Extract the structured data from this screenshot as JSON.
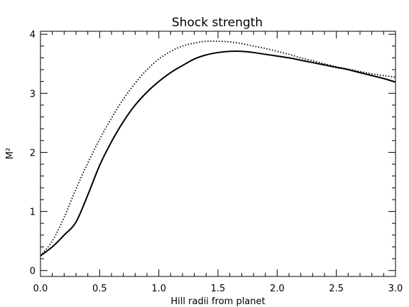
{
  "chart_data": {
    "type": "line",
    "title": "Shock strength",
    "xlabel": "Hill radii from planet",
    "ylabel": "M²",
    "xlim": [
      0.0,
      3.0
    ],
    "ylim": [
      -0.1,
      4.05
    ],
    "xticks": [
      0.0,
      0.5,
      1.0,
      1.5,
      2.0,
      2.5,
      3.0
    ],
    "xtick_labels": [
      "0.0",
      "0.5",
      "1.0",
      "1.5",
      "2.0",
      "2.5",
      "3.0"
    ],
    "yticks": [
      0,
      1,
      2,
      3,
      4
    ],
    "ytick_labels": [
      "0",
      "1",
      "2",
      "3",
      "4"
    ],
    "grid": false,
    "series": [
      {
        "style": "solid",
        "x": [
          0.0,
          0.1,
          0.2,
          0.3,
          0.4,
          0.5,
          0.6,
          0.7,
          0.8,
          0.9,
          1.0,
          1.1,
          1.2,
          1.3,
          1.4,
          1.5,
          1.6,
          1.7,
          1.8,
          1.9,
          2.0,
          2.1,
          2.2,
          2.3,
          2.4,
          2.5,
          2.6,
          2.7,
          2.8,
          2.9,
          3.0
        ],
        "y": [
          0.25,
          0.4,
          0.6,
          0.82,
          1.28,
          1.78,
          2.18,
          2.52,
          2.8,
          3.02,
          3.2,
          3.35,
          3.47,
          3.58,
          3.65,
          3.69,
          3.71,
          3.71,
          3.69,
          3.66,
          3.63,
          3.6,
          3.56,
          3.52,
          3.48,
          3.44,
          3.4,
          3.35,
          3.3,
          3.25,
          3.19
        ]
      },
      {
        "style": "dotted",
        "x": [
          0.0,
          0.1,
          0.2,
          0.3,
          0.4,
          0.5,
          0.6,
          0.7,
          0.8,
          0.9,
          1.0,
          1.1,
          1.2,
          1.3,
          1.4,
          1.5,
          1.6,
          1.7,
          1.8,
          1.9,
          2.0,
          2.1,
          2.2,
          2.3,
          2.4,
          2.5,
          2.6,
          2.7,
          2.8,
          2.9,
          3.0
        ],
        "y": [
          0.25,
          0.5,
          0.9,
          1.38,
          1.82,
          2.22,
          2.58,
          2.9,
          3.17,
          3.4,
          3.58,
          3.71,
          3.8,
          3.85,
          3.88,
          3.88,
          3.87,
          3.84,
          3.8,
          3.76,
          3.71,
          3.66,
          3.6,
          3.55,
          3.5,
          3.45,
          3.41,
          3.37,
          3.33,
          3.3,
          3.27
        ]
      }
    ]
  }
}
